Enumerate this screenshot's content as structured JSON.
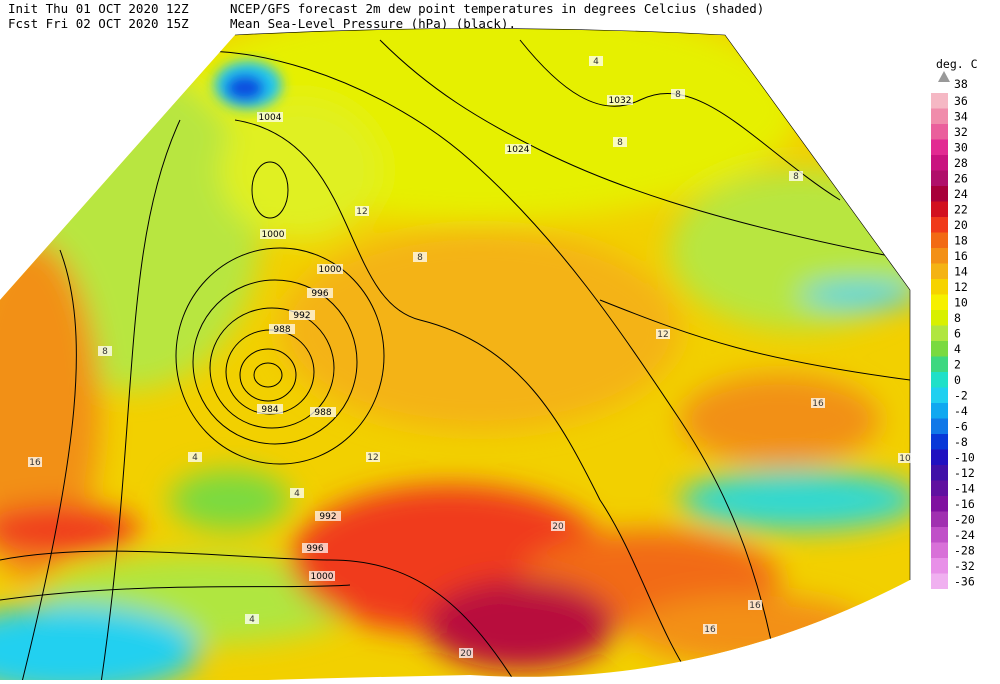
{
  "header": {
    "init": "Init  Thu 01 OCT 2020 12Z",
    "fcst": "Fcst Fri 02 OCT 2020 15Z",
    "title": "NCEP/GFS forecast 2m dew point temperatures in degrees Celcius (shaded)",
    "subtitle": "Mean Sea-Level Pressure (hPa) (black)."
  },
  "legend": {
    "unit": "deg. C",
    "top": "38",
    "items": [
      {
        "label": "36",
        "color": "#f5b8c4"
      },
      {
        "label": "34",
        "color": "#f08cab"
      },
      {
        "label": "32",
        "color": "#ea5f9c"
      },
      {
        "label": "30",
        "color": "#e22a92"
      },
      {
        "label": "28",
        "color": "#c9137f"
      },
      {
        "label": "26",
        "color": "#b00f6a"
      },
      {
        "label": "24",
        "color": "#a8003a"
      },
      {
        "label": "22",
        "color": "#d2101f"
      },
      {
        "label": "20",
        "color": "#f03a1a"
      },
      {
        "label": "18",
        "color": "#f26a14"
      },
      {
        "label": "16",
        "color": "#f39016"
      },
      {
        "label": "14",
        "color": "#f4b314"
      },
      {
        "label": "12",
        "color": "#f6d300"
      },
      {
        "label": "10",
        "color": "#f6f000"
      },
      {
        "label": "8",
        "color": "#d8f000"
      },
      {
        "label": "6",
        "color": "#b0e640"
      },
      {
        "label": "4",
        "color": "#7ada40"
      },
      {
        "label": "2",
        "color": "#3ed880"
      },
      {
        "label": "0",
        "color": "#20e0c8"
      },
      {
        "label": "-2",
        "color": "#20d0f0"
      },
      {
        "label": "-4",
        "color": "#10a8f0"
      },
      {
        "label": "-6",
        "color": "#1078e8"
      },
      {
        "label": "-8",
        "color": "#0838d8"
      },
      {
        "label": "-10",
        "color": "#2010c0"
      },
      {
        "label": "-12",
        "color": "#4010a8"
      },
      {
        "label": "-14",
        "color": "#6010a0"
      },
      {
        "label": "-16",
        "color": "#8010a0"
      },
      {
        "label": "-20",
        "color": "#a030b0"
      },
      {
        "label": "-24",
        "color": "#c050c8"
      },
      {
        "label": "-28",
        "color": "#d870d8"
      },
      {
        "label": "-32",
        "color": "#e890e8"
      },
      {
        "label": "-36",
        "color": "#f0b0f0"
      }
    ]
  },
  "pressure_labels": [
    "1004",
    "1000",
    "1000",
    "996",
    "992",
    "988",
    "984",
    "988",
    "992",
    "996",
    "1000",
    "1024",
    "1032"
  ],
  "dewpoint_labels": [
    "12",
    "12",
    "16",
    "16",
    "16",
    "16",
    "8",
    "4",
    "4",
    "20",
    "20",
    "12",
    "8",
    "4",
    "8",
    "4",
    "8",
    "8",
    "10"
  ]
}
